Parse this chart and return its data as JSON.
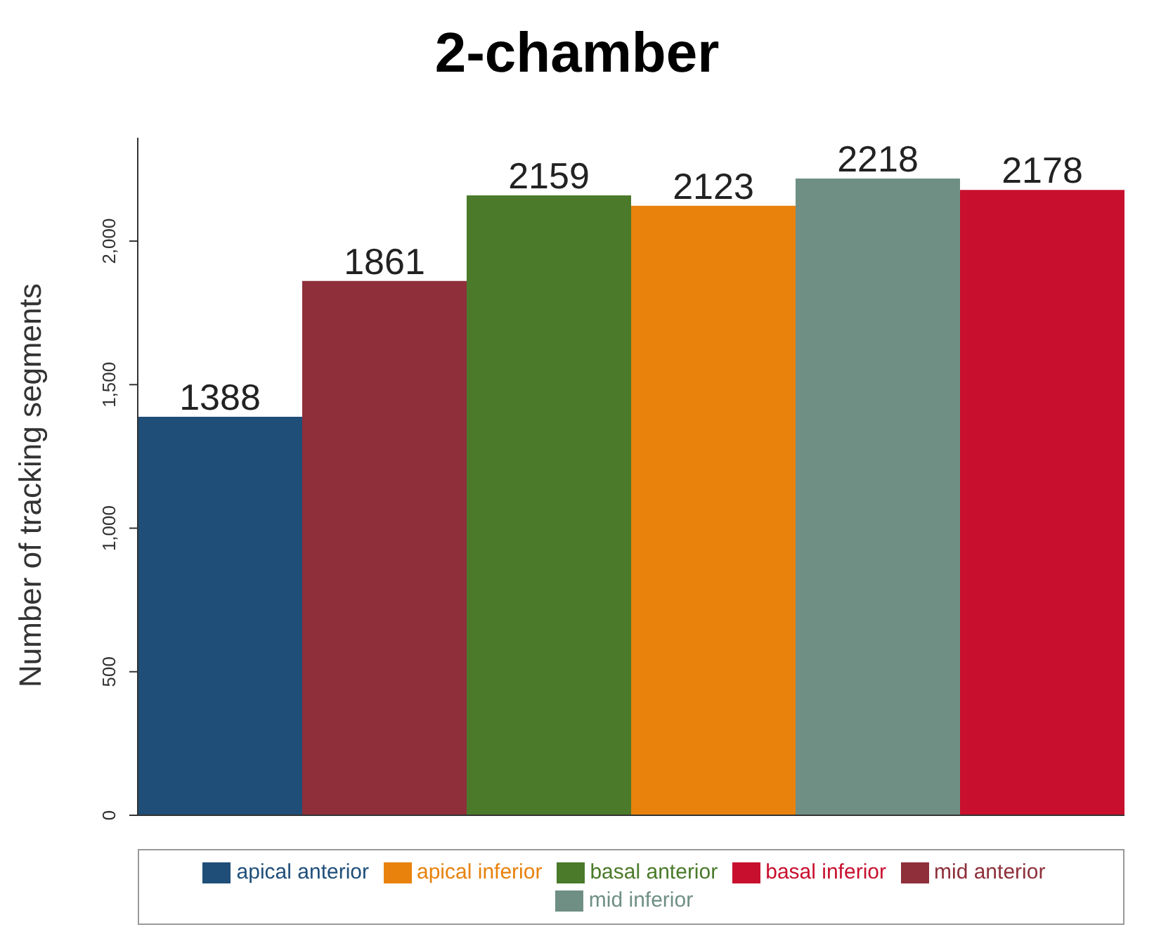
{
  "chart_data": {
    "type": "bar",
    "title": "2-chamber",
    "ylabel": "Number of tracking segments",
    "categories": [
      null
    ],
    "series": [
      {
        "name": "apical anterior",
        "color": "#1f4e79",
        "values": [
          1388
        ]
      },
      {
        "name": "mid anterior",
        "color": "#8e2f3a",
        "values": [
          1861
        ]
      },
      {
        "name": "basal anterior",
        "color": "#4a7a2a",
        "values": [
          2159
        ]
      },
      {
        "name": "apical inferior",
        "color": "#e8820c",
        "values": [
          2123
        ]
      },
      {
        "name": "mid inferior",
        "color": "#6f8f85",
        "values": [
          2218
        ]
      },
      {
        "name": "basal inferior",
        "color": "#c8102e",
        "values": [
          2178
        ]
      }
    ],
    "ylim": [
      0,
      2360
    ],
    "yticks": [
      0,
      500,
      {
        "value": 1000,
        "label": "1,000"
      },
      {
        "value": 1500,
        "label": "1,500"
      },
      {
        "value": 2000,
        "label": "2,000"
      }
    ],
    "data_labels": true,
    "legend": "bottom"
  }
}
